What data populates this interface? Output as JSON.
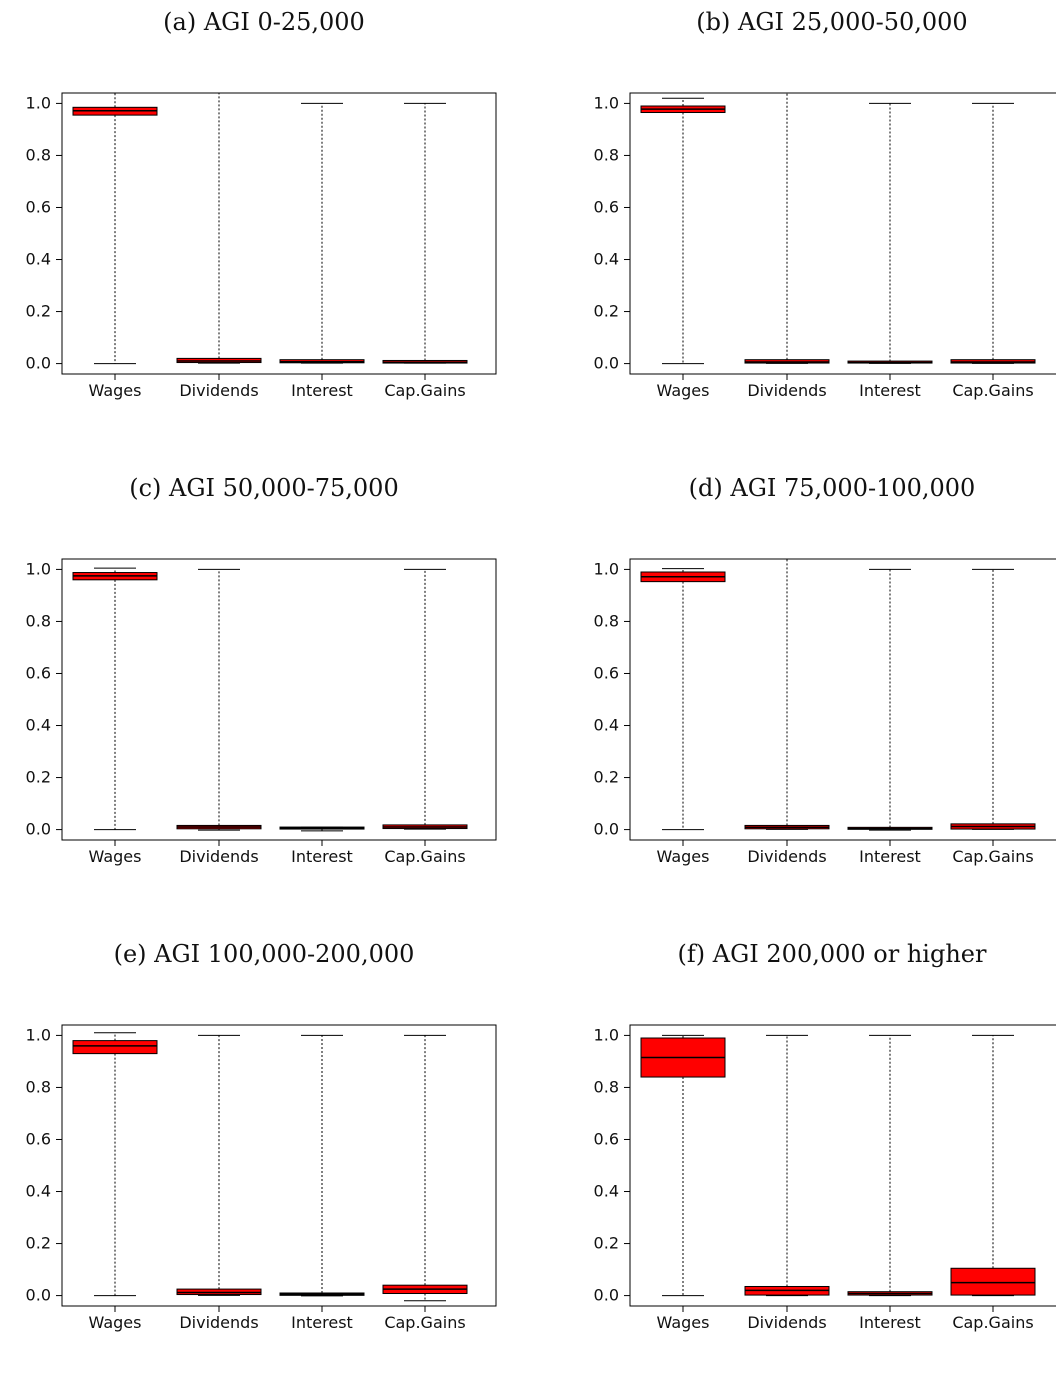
{
  "chart_data": [
    {
      "type": "box",
      "title": "(a) AGI 0-25,000",
      "categories": [
        "Wages",
        "Dividends",
        "Interest",
        "Cap.Gains"
      ],
      "ylim": [
        -0.04,
        1.04
      ],
      "yticks": [
        0.0,
        0.2,
        0.4,
        0.6,
        0.8,
        1.0
      ],
      "ytick_labels": [
        "0.0",
        "0.2",
        "0.4",
        "0.6",
        "0.8",
        "1.0"
      ],
      "boxes": [
        {
          "whisker_low": 0.0,
          "q1": 0.955,
          "median": 0.972,
          "q3": 0.985,
          "whisker_high": 1.04
        },
        {
          "whisker_low": 0.002,
          "q1": 0.004,
          "median": 0.01,
          "q3": 0.02,
          "whisker_high": 1.04
        },
        {
          "whisker_low": 0.002,
          "q1": 0.003,
          "median": 0.007,
          "q3": 0.015,
          "whisker_high": 1.0
        },
        {
          "whisker_low": 0.002,
          "q1": 0.002,
          "median": 0.005,
          "q3": 0.012,
          "whisker_high": 1.0
        }
      ],
      "box_color": "#ff0000"
    },
    {
      "type": "box",
      "title": "(b) AGI 25,000-50,000",
      "categories": [
        "Wages",
        "Dividends",
        "Interest",
        "Cap.Gains"
      ],
      "ylim": [
        -0.04,
        1.04
      ],
      "yticks": [
        0.0,
        0.2,
        0.4,
        0.6,
        0.8,
        1.0
      ],
      "ytick_labels": [
        "0.0",
        "0.2",
        "0.4",
        "0.6",
        "0.8",
        "1.0"
      ],
      "boxes": [
        {
          "whisker_low": 0.0,
          "q1": 0.965,
          "median": 0.978,
          "q3": 0.99,
          "whisker_high": 1.02
        },
        {
          "whisker_low": 0.001,
          "q1": 0.002,
          "median": 0.006,
          "q3": 0.015,
          "whisker_high": 1.04
        },
        {
          "whisker_low": 0.001,
          "q1": 0.002,
          "median": 0.004,
          "q3": 0.008,
          "whisker_high": 1.0
        },
        {
          "whisker_low": 0.001,
          "q1": 0.002,
          "median": 0.006,
          "q3": 0.015,
          "whisker_high": 1.0
        }
      ],
      "box_color": "#ff0000"
    },
    {
      "type": "box",
      "title": "(c) AGI 50,000-75,000",
      "categories": [
        "Wages",
        "Dividends",
        "Interest",
        "Cap.Gains"
      ],
      "ylim": [
        -0.04,
        1.04
      ],
      "yticks": [
        0.0,
        0.2,
        0.4,
        0.6,
        0.8,
        1.0
      ],
      "ytick_labels": [
        "0.0",
        "0.2",
        "0.4",
        "0.6",
        "0.8",
        "1.0"
      ],
      "boxes": [
        {
          "whisker_low": 0.0,
          "q1": 0.96,
          "median": 0.975,
          "q3": 0.988,
          "whisker_high": 1.005
        },
        {
          "whisker_low": -0.002,
          "q1": 0.003,
          "median": 0.01,
          "q3": 0.016,
          "whisker_high": 1.0
        },
        {
          "whisker_low": -0.005,
          "q1": 0.002,
          "median": 0.005,
          "q3": 0.009,
          "whisker_high": 0.009
        },
        {
          "whisker_low": 0.002,
          "q1": 0.004,
          "median": 0.01,
          "q3": 0.018,
          "whisker_high": 1.0
        }
      ],
      "box_color": "#ff0000"
    },
    {
      "type": "box",
      "title": "(d) AGI 75,000-100,000",
      "categories": [
        "Wages",
        "Dividends",
        "Interest",
        "Cap.Gains"
      ],
      "ylim": [
        -0.04,
        1.04
      ],
      "yticks": [
        0.0,
        0.2,
        0.4,
        0.6,
        0.8,
        1.0
      ],
      "ytick_labels": [
        "0.0",
        "0.2",
        "0.4",
        "0.6",
        "0.8",
        "1.0"
      ],
      "boxes": [
        {
          "whisker_low": 0.0,
          "q1": 0.953,
          "median": 0.972,
          "q3": 0.99,
          "whisker_high": 1.003
        },
        {
          "whisker_low": 0.001,
          "q1": 0.003,
          "median": 0.009,
          "q3": 0.016,
          "whisker_high": 1.04
        },
        {
          "whisker_low": -0.002,
          "q1": 0.001,
          "median": 0.004,
          "q3": 0.008,
          "whisker_high": 1.0
        },
        {
          "whisker_low": 0.001,
          "q1": 0.002,
          "median": 0.012,
          "q3": 0.022,
          "whisker_high": 1.0
        }
      ],
      "box_color": "#ff0000"
    },
    {
      "type": "box",
      "title": "(e) AGI 100,000-200,000",
      "categories": [
        "Wages",
        "Dividends",
        "Interest",
        "Cap.Gains"
      ],
      "ylim": [
        -0.04,
        1.04
      ],
      "yticks": [
        0.0,
        0.2,
        0.4,
        0.6,
        0.8,
        1.0
      ],
      "ytick_labels": [
        "0.0",
        "0.2",
        "0.4",
        "0.6",
        "0.8",
        "1.0"
      ],
      "boxes": [
        {
          "whisker_low": 0.0,
          "q1": 0.93,
          "median": 0.96,
          "q3": 0.98,
          "whisker_high": 1.01
        },
        {
          "whisker_low": 0.001,
          "q1": 0.004,
          "median": 0.012,
          "q3": 0.025,
          "whisker_high": 1.0
        },
        {
          "whisker_low": -0.001,
          "q1": 0.001,
          "median": 0.005,
          "q3": 0.01,
          "whisker_high": 1.0
        },
        {
          "whisker_low": -0.02,
          "q1": 0.008,
          "median": 0.025,
          "q3": 0.04,
          "whisker_high": 1.0
        }
      ],
      "box_color": "#ff0000"
    },
    {
      "type": "box",
      "title": "(f) AGI 200,000 or higher",
      "categories": [
        "Wages",
        "Dividends",
        "Interest",
        "Cap.Gains"
      ],
      "ylim": [
        -0.04,
        1.04
      ],
      "yticks": [
        0.0,
        0.2,
        0.4,
        0.6,
        0.8,
        1.0
      ],
      "ytick_labels": [
        "0.0",
        "0.2",
        "0.4",
        "0.6",
        "0.8",
        "1.0"
      ],
      "boxes": [
        {
          "whisker_low": 0.0,
          "q1": 0.84,
          "median": 0.915,
          "q3": 0.99,
          "whisker_high": 1.0
        },
        {
          "whisker_low": 0.0,
          "q1": 0.002,
          "median": 0.02,
          "q3": 0.035,
          "whisker_high": 1.0
        },
        {
          "whisker_low": 0.0,
          "q1": 0.002,
          "median": 0.008,
          "q3": 0.015,
          "whisker_high": 1.0
        },
        {
          "whisker_low": 0.0,
          "q1": 0.002,
          "median": 0.05,
          "q3": 0.105,
          "whisker_high": 1.0
        }
      ],
      "box_color": "#ff0000"
    }
  ]
}
